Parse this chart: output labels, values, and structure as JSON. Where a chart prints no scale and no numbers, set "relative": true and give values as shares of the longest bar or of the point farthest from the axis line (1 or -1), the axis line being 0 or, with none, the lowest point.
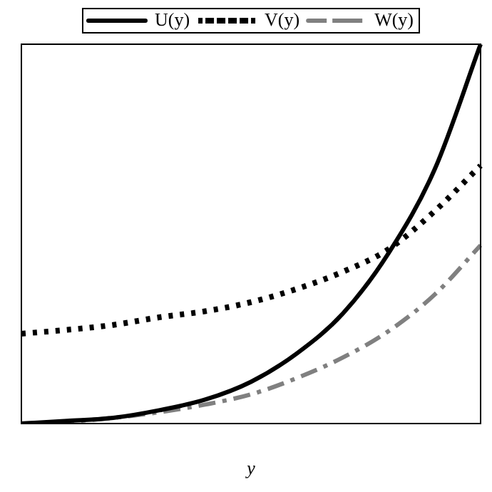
{
  "chart_data": {
    "type": "line",
    "relative": true,
    "xlabel": "y",
    "legend": "top",
    "grid": false,
    "marker": "none",
    "categories": [
      null,
      null,
      null,
      null,
      null,
      null,
      null,
      null,
      null,
      null,
      null
    ],
    "series": [
      {
        "name": "U(y)",
        "color": "#000000",
        "line_style": "solid",
        "values": [
          0,
          0.007,
          0.015,
          0.035,
          0.063,
          0.11,
          0.185,
          0.29,
          0.45,
          0.67,
          1
        ]
      },
      {
        "name": "V(y)",
        "color": "#000000",
        "line_style": "dotted",
        "values": [
          0.237,
          0.247,
          0.26,
          0.28,
          0.296,
          0.32,
          0.355,
          0.4,
          0.46,
          0.56,
          0.68
        ]
      },
      {
        "name": "W(y)",
        "color": "#808080",
        "line_style": "dashed",
        "values": [
          0,
          0.005,
          0.015,
          0.03,
          0.05,
          0.077,
          0.12,
          0.174,
          0.244,
          0.34,
          0.47
        ]
      }
    ]
  }
}
